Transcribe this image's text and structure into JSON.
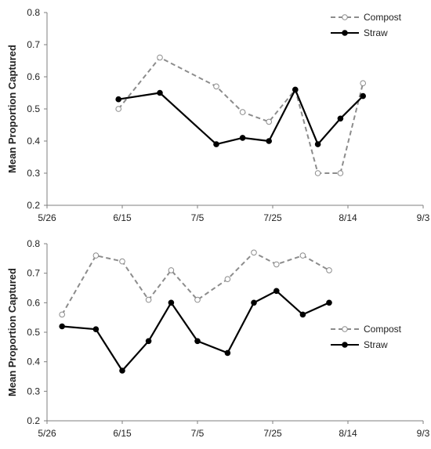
{
  "chart_data": [
    {
      "type": "line",
      "title": "",
      "xlabel": "",
      "ylabel": "Mean Proportion Captured",
      "xlim": [
        "5/26",
        "9/3"
      ],
      "ylim": [
        0.2,
        0.8
      ],
      "x_ticks": [
        "5/26",
        "6/15",
        "7/5",
        "7/25",
        "8/14",
        "9/3"
      ],
      "y_ticks": [
        "0.2",
        "0.3",
        "0.4",
        "0.5",
        "0.6",
        "0.7",
        "0.8"
      ],
      "grid": false,
      "legend_position": "top-right",
      "series": [
        {
          "name": "Compost",
          "style": "dashed gray line, open circle markers",
          "color": "#8c8c8c",
          "points": [
            {
              "x": "6/14",
              "y": 0.5
            },
            {
              "x": "6/25",
              "y": 0.66
            },
            {
              "x": "7/10",
              "y": 0.57
            },
            {
              "x": "7/17",
              "y": 0.49
            },
            {
              "x": "7/24",
              "y": 0.46
            },
            {
              "x": "7/31",
              "y": 0.56
            },
            {
              "x": "8/6",
              "y": 0.3
            },
            {
              "x": "8/12",
              "y": 0.3
            },
            {
              "x": "8/18",
              "y": 0.58
            }
          ]
        },
        {
          "name": "Straw",
          "style": "solid black line, filled circle markers",
          "color": "#000000",
          "points": [
            {
              "x": "6/14",
              "y": 0.53
            },
            {
              "x": "6/25",
              "y": 0.55
            },
            {
              "x": "7/10",
              "y": 0.39
            },
            {
              "x": "7/17",
              "y": 0.41
            },
            {
              "x": "7/24",
              "y": 0.4
            },
            {
              "x": "7/31",
              "y": 0.56
            },
            {
              "x": "8/6",
              "y": 0.39
            },
            {
              "x": "8/12",
              "y": 0.47
            },
            {
              "x": "8/18",
              "y": 0.54
            }
          ]
        }
      ]
    },
    {
      "type": "line",
      "title": "",
      "xlabel": "",
      "ylabel": "Mean Proportion Captured",
      "xlim": [
        "5/26",
        "9/3"
      ],
      "ylim": [
        0.2,
        0.8
      ],
      "x_ticks": [
        "5/26",
        "6/15",
        "7/5",
        "7/25",
        "8/14",
        "9/3"
      ],
      "y_ticks": [
        "0.2",
        "0.3",
        "0.4",
        "0.5",
        "0.6",
        "0.7",
        "0.8"
      ],
      "grid": false,
      "legend_position": "right",
      "series": [
        {
          "name": "Compost",
          "style": "dashed gray line, open circle markers",
          "color": "#8c8c8c",
          "points": [
            {
              "x": "5/30",
              "y": 0.56
            },
            {
              "x": "6/8",
              "y": 0.76
            },
            {
              "x": "6/15",
              "y": 0.74
            },
            {
              "x": "6/22",
              "y": 0.61
            },
            {
              "x": "6/28",
              "y": 0.71
            },
            {
              "x": "7/5",
              "y": 0.61
            },
            {
              "x": "7/13",
              "y": 0.68
            },
            {
              "x": "7/20",
              "y": 0.77
            },
            {
              "x": "7/26",
              "y": 0.73
            },
            {
              "x": "8/2",
              "y": 0.76
            },
            {
              "x": "8/9",
              "y": 0.71
            }
          ]
        },
        {
          "name": "Straw",
          "style": "solid black line, filled circle markers",
          "color": "#000000",
          "points": [
            {
              "x": "5/30",
              "y": 0.52
            },
            {
              "x": "6/8",
              "y": 0.51
            },
            {
              "x": "6/15",
              "y": 0.37
            },
            {
              "x": "6/22",
              "y": 0.47
            },
            {
              "x": "6/28",
              "y": 0.6
            },
            {
              "x": "7/5",
              "y": 0.47
            },
            {
              "x": "7/13",
              "y": 0.43
            },
            {
              "x": "7/20",
              "y": 0.6
            },
            {
              "x": "7/26",
              "y": 0.64
            },
            {
              "x": "8/2",
              "y": 0.56
            },
            {
              "x": "8/9",
              "y": 0.6
            }
          ]
        }
      ]
    }
  ]
}
